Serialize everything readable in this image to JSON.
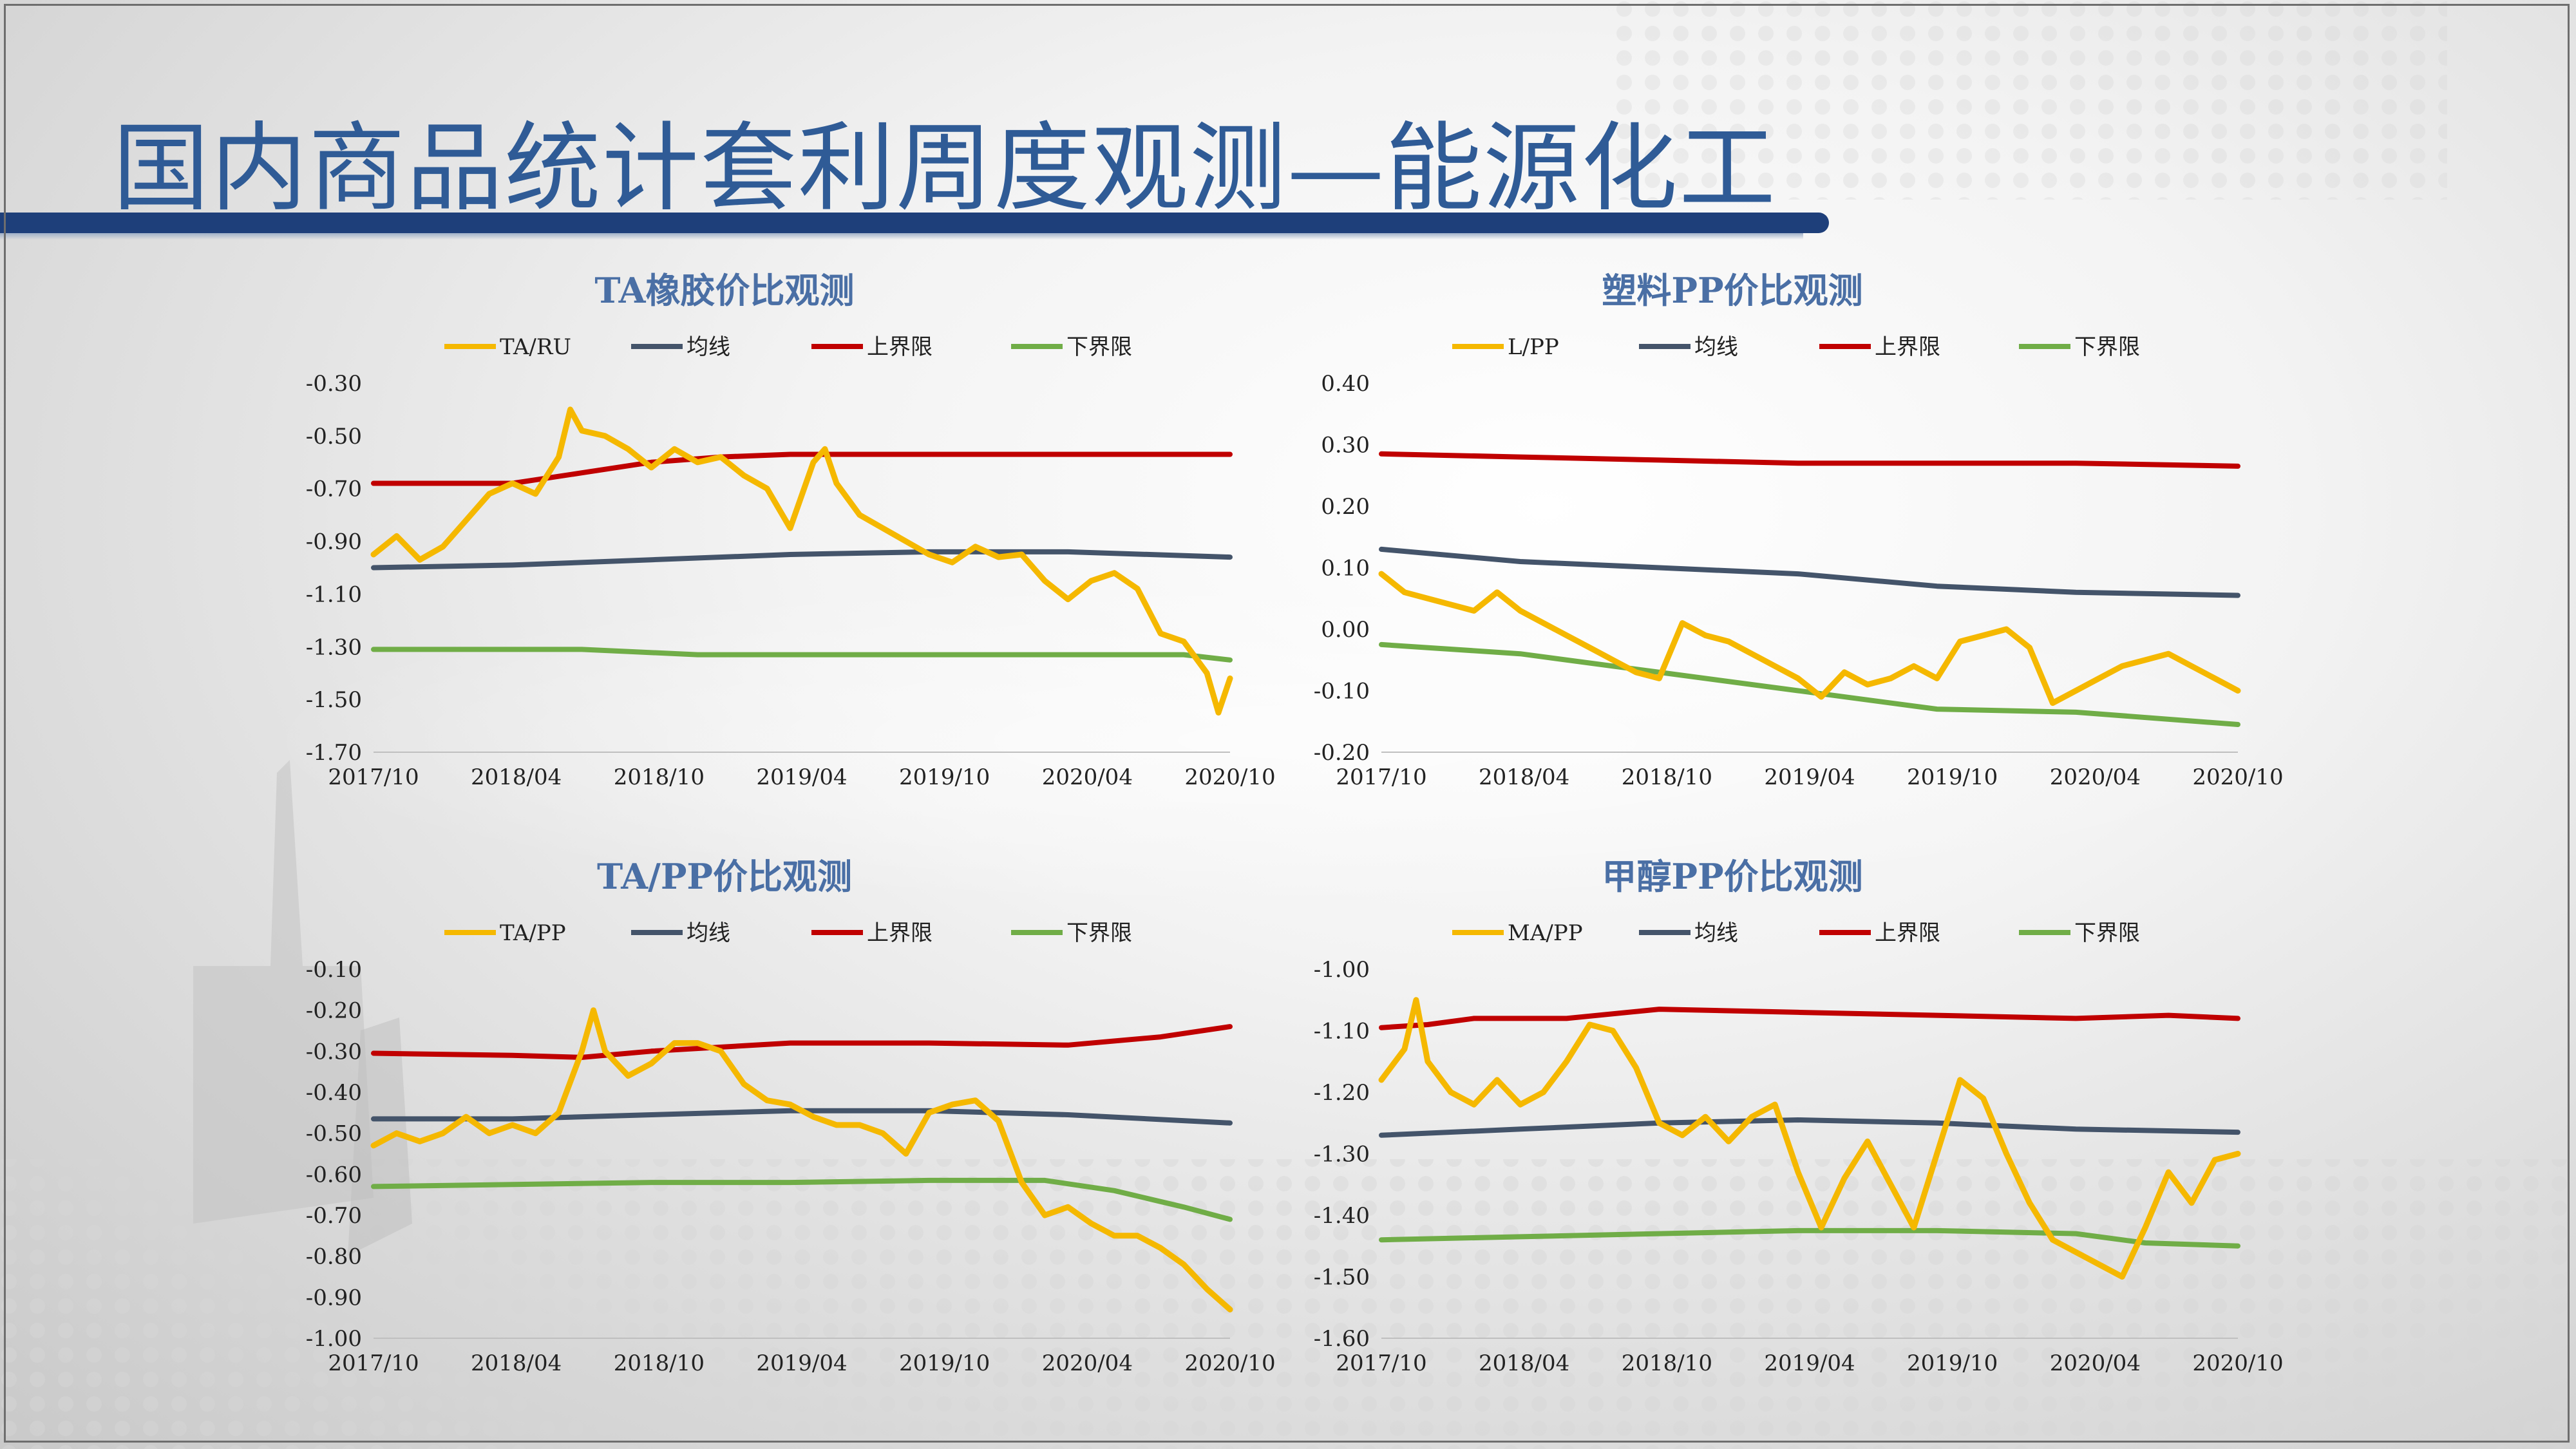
{
  "page": {
    "title": "国内商品统计套利周度观测—能源化工",
    "accent_color": "#2f5b96",
    "bar_color": "#1e3f7a"
  },
  "colors": {
    "ratio": "#f5b800",
    "mean": "#44546a",
    "upper": "#c00000",
    "lower": "#70ad47"
  },
  "chart_data": [
    {
      "id": "ta-ru",
      "type": "line",
      "title": "TA橡胶价比观测",
      "legend": [
        "TA/RU",
        "均线",
        "上界限",
        "下界限"
      ],
      "x_ticks": [
        "2017/10",
        "2018/04",
        "2018/10",
        "2019/04",
        "2019/10",
        "2020/04",
        "2020/10"
      ],
      "y_ticks": [
        "-0.30",
        "-0.50",
        "-0.70",
        "-0.90",
        "-1.10",
        "-1.30",
        "-1.50",
        "-1.70"
      ],
      "ylim": [
        -1.7,
        -0.3
      ],
      "xlim": [
        0,
        37
      ],
      "series": [
        {
          "name": "TA/RU",
          "role": "ratio",
          "x": [
            0,
            1,
            2,
            3,
            4,
            5,
            6,
            7,
            8,
            8.5,
            9,
            10,
            11,
            12,
            13,
            14,
            15,
            16,
            17,
            18,
            19,
            19.5,
            20,
            21,
            22,
            23,
            24,
            25,
            26,
            27,
            28,
            29,
            30,
            31,
            32,
            33,
            34,
            35,
            36,
            36.5,
            37
          ],
          "y": [
            -0.95,
            -0.88,
            -0.97,
            -0.92,
            -0.82,
            -0.72,
            -0.68,
            -0.72,
            -0.58,
            -0.4,
            -0.48,
            -0.5,
            -0.55,
            -0.62,
            -0.55,
            -0.6,
            -0.58,
            -0.65,
            -0.7,
            -0.85,
            -0.6,
            -0.55,
            -0.68,
            -0.8,
            -0.85,
            -0.9,
            -0.95,
            -0.98,
            -0.92,
            -0.96,
            -0.95,
            -1.05,
            -1.12,
            -1.05,
            -1.02,
            -1.08,
            -1.25,
            -1.28,
            -1.4,
            -1.55,
            -1.42
          ]
        },
        {
          "name": "均线",
          "role": "mean",
          "x": [
            0,
            6,
            12,
            18,
            24,
            30,
            37
          ],
          "y": [
            -1.0,
            -0.99,
            -0.97,
            -0.95,
            -0.94,
            -0.94,
            -0.96
          ]
        },
        {
          "name": "上界限",
          "role": "upper",
          "x": [
            0,
            6,
            9,
            12,
            15,
            18,
            24,
            30,
            37
          ],
          "y": [
            -0.68,
            -0.68,
            -0.64,
            -0.6,
            -0.58,
            -0.57,
            -0.57,
            -0.57,
            -0.57
          ]
        },
        {
          "name": "下界限",
          "role": "lower",
          "x": [
            0,
            9,
            14,
            18,
            24,
            30,
            35,
            37
          ],
          "y": [
            -1.31,
            -1.31,
            -1.33,
            -1.33,
            -1.33,
            -1.33,
            -1.33,
            -1.35
          ]
        }
      ]
    },
    {
      "id": "l-pp",
      "type": "line",
      "title": "塑料PP价比观测",
      "legend": [
        "L/PP",
        "均线",
        "上界限",
        "下界限"
      ],
      "x_ticks": [
        "2017/10",
        "2018/04",
        "2018/10",
        "2019/04",
        "2019/10",
        "2020/04",
        "2020/10"
      ],
      "y_ticks": [
        "0.40",
        "0.30",
        "0.20",
        "0.10",
        "0.00",
        "-0.10",
        "-0.20"
      ],
      "ylim": [
        -0.2,
        0.4
      ],
      "xlim": [
        0,
        37
      ],
      "series": [
        {
          "name": "L/PP",
          "role": "ratio",
          "x": [
            0,
            1,
            2,
            3,
            4,
            5,
            6,
            7,
            8,
            9,
            10,
            11,
            12,
            13,
            14,
            15,
            16,
            17,
            18,
            19,
            20,
            21,
            22,
            23,
            24,
            25,
            26,
            27,
            28,
            29,
            30,
            31,
            32,
            33,
            34,
            35,
            36,
            37
          ],
          "y": [
            0.09,
            0.06,
            0.05,
            0.04,
            0.03,
            0.06,
            0.03,
            0.01,
            -0.01,
            -0.03,
            -0.05,
            -0.07,
            -0.08,
            0.01,
            -0.01,
            -0.02,
            -0.04,
            -0.06,
            -0.08,
            -0.11,
            -0.07,
            -0.09,
            -0.08,
            -0.06,
            -0.08,
            -0.02,
            -0.01,
            0.0,
            -0.03,
            -0.12,
            -0.1,
            -0.08,
            -0.06,
            -0.05,
            -0.04,
            -0.06,
            -0.08,
            -0.1
          ]
        },
        {
          "name": "均线",
          "role": "mean",
          "x": [
            0,
            6,
            12,
            18,
            24,
            30,
            37
          ],
          "y": [
            0.13,
            0.11,
            0.1,
            0.09,
            0.07,
            0.06,
            0.055
          ]
        },
        {
          "name": "上界限",
          "role": "upper",
          "x": [
            0,
            6,
            12,
            18,
            24,
            30,
            37
          ],
          "y": [
            0.285,
            0.28,
            0.275,
            0.27,
            0.27,
            0.27,
            0.265
          ]
        },
        {
          "name": "下界限",
          "role": "lower",
          "x": [
            0,
            6,
            12,
            18,
            24,
            30,
            37
          ],
          "y": [
            -0.025,
            -0.04,
            -0.07,
            -0.1,
            -0.13,
            -0.135,
            -0.155
          ]
        }
      ]
    },
    {
      "id": "ta-pp",
      "type": "line",
      "title": "TA/PP价比观测",
      "legend": [
        "TA/PP",
        "均线",
        "上界限",
        "下界限"
      ],
      "x_ticks": [
        "2017/10",
        "2018/04",
        "2018/10",
        "2019/04",
        "2019/10",
        "2020/04",
        "2020/10"
      ],
      "y_ticks": [
        "-0.10",
        "-0.20",
        "-0.30",
        "-0.40",
        "-0.50",
        "-0.60",
        "-0.70",
        "-0.80",
        "-0.90",
        "-1.00"
      ],
      "ylim": [
        -1.0,
        -0.1
      ],
      "xlim": [
        0,
        37
      ],
      "series": [
        {
          "name": "TA/PP",
          "role": "ratio",
          "x": [
            0,
            1,
            2,
            3,
            4,
            5,
            6,
            7,
            8,
            9,
            9.5,
            10,
            11,
            12,
            13,
            14,
            15,
            16,
            17,
            18,
            19,
            20,
            21,
            22,
            23,
            24,
            25,
            26,
            27,
            28,
            29,
            30,
            31,
            32,
            33,
            34,
            35,
            36,
            37
          ],
          "y": [
            -0.53,
            -0.5,
            -0.52,
            -0.5,
            -0.46,
            -0.5,
            -0.48,
            -0.5,
            -0.45,
            -0.3,
            -0.2,
            -0.3,
            -0.36,
            -0.33,
            -0.28,
            -0.28,
            -0.3,
            -0.38,
            -0.42,
            -0.43,
            -0.46,
            -0.48,
            -0.48,
            -0.5,
            -0.55,
            -0.45,
            -0.43,
            -0.42,
            -0.47,
            -0.62,
            -0.7,
            -0.68,
            -0.72,
            -0.75,
            -0.75,
            -0.78,
            -0.82,
            -0.88,
            -0.93
          ]
        },
        {
          "name": "均线",
          "role": "mean",
          "x": [
            0,
            6,
            12,
            18,
            24,
            30,
            37
          ],
          "y": [
            -0.465,
            -0.465,
            -0.455,
            -0.445,
            -0.445,
            -0.455,
            -0.475
          ]
        },
        {
          "name": "上界限",
          "role": "upper",
          "x": [
            0,
            6,
            9,
            12,
            18,
            24,
            30,
            34,
            37
          ],
          "y": [
            -0.305,
            -0.31,
            -0.315,
            -0.3,
            -0.28,
            -0.28,
            -0.285,
            -0.265,
            -0.24
          ]
        },
        {
          "name": "下界限",
          "role": "lower",
          "x": [
            0,
            6,
            12,
            18,
            24,
            29,
            32,
            35,
            37
          ],
          "y": [
            -0.63,
            -0.625,
            -0.62,
            -0.62,
            -0.615,
            -0.615,
            -0.64,
            -0.68,
            -0.71
          ]
        }
      ]
    },
    {
      "id": "ma-pp",
      "type": "line",
      "title": "甲醇PP价比观测",
      "legend": [
        "MA/PP",
        "均线",
        "上界限",
        "下界限"
      ],
      "x_ticks": [
        "2017/10",
        "2018/04",
        "2018/10",
        "2019/04",
        "2019/10",
        "2020/04",
        "2020/10"
      ],
      "y_ticks": [
        "-1.00",
        "-1.10",
        "-1.20",
        "-1.30",
        "-1.40",
        "-1.50",
        "-1.60"
      ],
      "ylim": [
        -1.6,
        -1.0
      ],
      "xlim": [
        0,
        37
      ],
      "series": [
        {
          "name": "MA/PP",
          "role": "ratio",
          "x": [
            0,
            1,
            1.5,
            2,
            3,
            4,
            5,
            6,
            7,
            8,
            9,
            10,
            11,
            12,
            13,
            14,
            15,
            16,
            17,
            18,
            19,
            20,
            21,
            22,
            23,
            24,
            25,
            26,
            27,
            28,
            29,
            30,
            31,
            32,
            33,
            34,
            35,
            36,
            37
          ],
          "y": [
            -1.18,
            -1.13,
            -1.05,
            -1.15,
            -1.2,
            -1.22,
            -1.18,
            -1.22,
            -1.2,
            -1.15,
            -1.09,
            -1.1,
            -1.16,
            -1.25,
            -1.27,
            -1.24,
            -1.28,
            -1.24,
            -1.22,
            -1.33,
            -1.42,
            -1.34,
            -1.28,
            -1.35,
            -1.42,
            -1.3,
            -1.18,
            -1.21,
            -1.3,
            -1.38,
            -1.44,
            -1.46,
            -1.48,
            -1.5,
            -1.42,
            -1.33,
            -1.38,
            -1.31,
            -1.3
          ]
        },
        {
          "name": "均线",
          "role": "mean",
          "x": [
            0,
            6,
            12,
            18,
            24,
            30,
            37
          ],
          "y": [
            -1.27,
            -1.26,
            -1.25,
            -1.245,
            -1.25,
            -1.26,
            -1.265
          ]
        },
        {
          "name": "上界限",
          "role": "upper",
          "x": [
            0,
            2,
            4,
            8,
            12,
            18,
            24,
            30,
            34,
            37
          ],
          "y": [
            -1.095,
            -1.09,
            -1.08,
            -1.08,
            -1.065,
            -1.07,
            -1.075,
            -1.08,
            -1.075,
            -1.08
          ]
        },
        {
          "name": "下界限",
          "role": "lower",
          "x": [
            0,
            6,
            12,
            18,
            24,
            30,
            33,
            37
          ],
          "y": [
            -1.44,
            -1.435,
            -1.43,
            -1.425,
            -1.425,
            -1.43,
            -1.445,
            -1.45
          ]
        }
      ]
    }
  ]
}
